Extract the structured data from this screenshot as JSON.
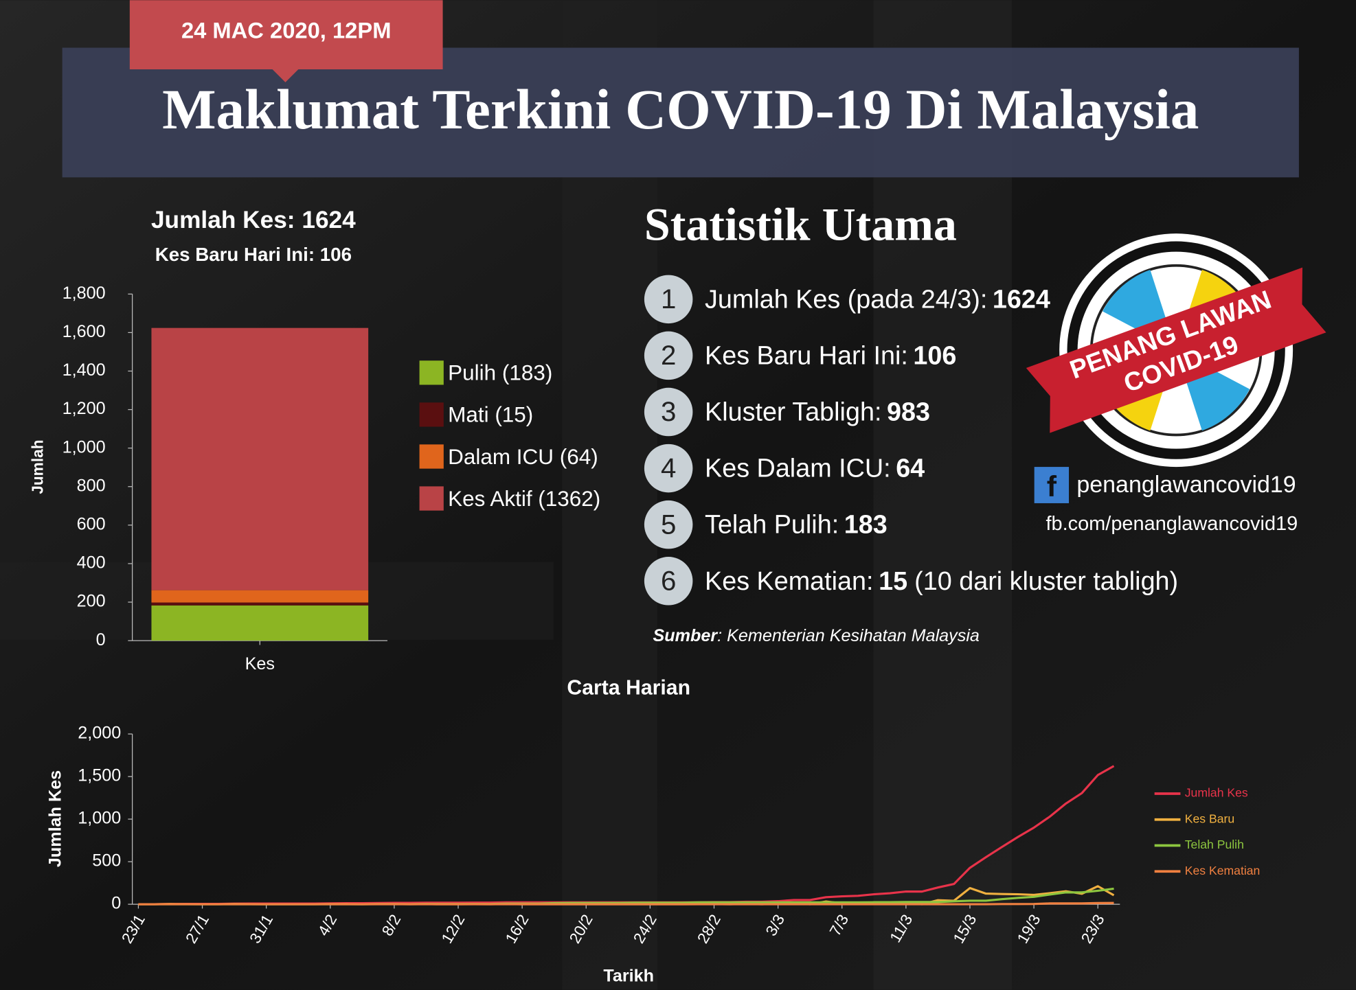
{
  "header": {
    "date": "24 MAC 2020, 12PM",
    "title": "Maklumat Terkini COVID-19 Di Malaysia"
  },
  "stats": {
    "title": "Statistik Utama",
    "items": [
      {
        "number": "1",
        "label": "Jumlah Kes (pada 24/3):",
        "value": "1624"
      },
      {
        "number": "2",
        "label": "Kes Baru Hari Ini:",
        "value": "106"
      },
      {
        "number": "3",
        "label": "Kluster Tabligh:",
        "value": "983"
      },
      {
        "number": "4",
        "label": "Kes Dalam ICU:",
        "value": "64"
      },
      {
        "number": "5",
        "label": "Telah Pulih:",
        "value": "183"
      },
      {
        "number": "6",
        "label": "Kes Kematian:",
        "value": "15",
        "note": "(10 dari kluster tabligh)"
      }
    ],
    "source_label": "Sumber",
    "source": ": Kementerian Kesihatan Malaysia"
  },
  "badge": {
    "line1": "PENANG LAWAN",
    "line2": "COVID-19"
  },
  "social": {
    "icon": "f",
    "handle": "penanglawancovid19",
    "url": "fb.com/penanglawancovid19"
  },
  "chart_data": [
    {
      "type": "bar",
      "title": "Jumlah Kes: 1624",
      "subtitle": "Kes Baru Hari Ini: 106",
      "y_label": "Jumlah",
      "stacked": true,
      "grid": false,
      "categories": [
        "Kes"
      ],
      "series": [
        {
          "name": "Pulih (183)",
          "color": "#8cb523",
          "values": [
            183
          ]
        },
        {
          "name": "Mati (15)",
          "color": "#5a0f10",
          "values": [
            15
          ]
        },
        {
          "name": "Dalam ICU (64)",
          "color": "#e0651c",
          "values": [
            64
          ]
        },
        {
          "name": "Kes Aktif (1362)",
          "color": "#b94346",
          "values": [
            1362
          ]
        }
      ],
      "ylim": [
        0,
        1800
      ],
      "yticks": [
        0,
        200,
        400,
        600,
        800,
        {
          "value": 1000,
          "label": "1,000"
        },
        {
          "value": 1200,
          "label": "1,200"
        },
        {
          "value": 1400,
          "label": "1,400"
        },
        {
          "value": 1600,
          "label": "1,600"
        },
        {
          "value": 1800,
          "label": "1,800"
        }
      ],
      "legend": "right"
    },
    {
      "type": "line",
      "title": "Carta Harian",
      "x_label": "Tarikh",
      "y_label": "Jumlah Kes",
      "grid": false,
      "categories": [
        "23/1",
        null,
        null,
        null,
        "27/1",
        null,
        null,
        null,
        "31/1",
        null,
        null,
        null,
        "4/2",
        null,
        null,
        null,
        "8/2",
        null,
        null,
        null,
        "12/2",
        null,
        null,
        null,
        "16/2",
        null,
        null,
        null,
        "20/2",
        null,
        null,
        null,
        "24/2",
        null,
        null,
        null,
        "28/2",
        null,
        null,
        null,
        "3/3",
        null,
        null,
        null,
        "7/3",
        null,
        null,
        null,
        "11/3",
        null,
        null,
        null,
        "15/3",
        null,
        null,
        null,
        "19/3",
        null,
        null,
        null,
        "23/3",
        null
      ],
      "series": [
        {
          "name": "Jumlah Kes",
          "color": "#e8334a",
          "values": [
            0,
            0,
            3,
            4,
            4,
            4,
            7,
            8,
            8,
            8,
            8,
            8,
            10,
            12,
            12,
            14,
            16,
            16,
            18,
            18,
            18,
            19,
            19,
            22,
            22,
            22,
            22,
            22,
            22,
            22,
            22,
            22,
            22,
            22,
            22,
            23,
            25,
            25,
            29,
            29,
            36,
            50,
            50,
            83,
            93,
            99,
            117,
            129,
            149,
            149,
            197,
            238,
            428,
            553,
            673,
            790,
            900,
            1030,
            1183,
            1306,
            1518,
            1624
          ]
        },
        {
          "name": "Kes Baru",
          "color": "#f0b040",
          "values": [
            0,
            0,
            3,
            1,
            0,
            0,
            3,
            1,
            0,
            0,
            0,
            0,
            2,
            2,
            0,
            2,
            2,
            0,
            2,
            0,
            0,
            1,
            0,
            3,
            0,
            0,
            0,
            0,
            0,
            0,
            0,
            0,
            0,
            0,
            0,
            1,
            2,
            0,
            4,
            0,
            7,
            14,
            0,
            33,
            10,
            6,
            18,
            12,
            20,
            0,
            48,
            41,
            190,
            125,
            120,
            117,
            110,
            130,
            153,
            123,
            212,
            106
          ]
        },
        {
          "name": "Telah Pulih",
          "color": "#8dc63f",
          "values": [
            0,
            0,
            0,
            0,
            0,
            0,
            0,
            0,
            0,
            0,
            0,
            0,
            0,
            0,
            0,
            1,
            1,
            1,
            3,
            3,
            3,
            3,
            3,
            7,
            7,
            7,
            13,
            15,
            15,
            15,
            15,
            18,
            18,
            18,
            18,
            22,
            22,
            22,
            22,
            22,
            22,
            22,
            22,
            22,
            22,
            22,
            24,
            24,
            26,
            26,
            26,
            35,
            42,
            42,
            60,
            75,
            87,
            114,
            139,
            139,
            159,
            183
          ]
        },
        {
          "name": "Kes Kematian",
          "color": "#f08040",
          "values": [
            0,
            0,
            0,
            0,
            0,
            0,
            0,
            0,
            0,
            0,
            0,
            0,
            0,
            0,
            0,
            0,
            0,
            0,
            0,
            0,
            0,
            0,
            0,
            0,
            0,
            0,
            0,
            0,
            0,
            0,
            0,
            0,
            0,
            0,
            0,
            0,
            0,
            0,
            0,
            0,
            0,
            0,
            0,
            0,
            0,
            0,
            0,
            0,
            0,
            0,
            0,
            0,
            0,
            0,
            2,
            2,
            3,
            10,
            10,
            10,
            14,
            15
          ]
        }
      ],
      "ylim": [
        0,
        2000
      ],
      "yticks": [
        0,
        500,
        {
          "value": 1000,
          "label": "1,000"
        },
        {
          "value": 1500,
          "label": "1,500"
        },
        {
          "value": 2000,
          "label": "2,000"
        }
      ],
      "legend": "right"
    }
  ]
}
